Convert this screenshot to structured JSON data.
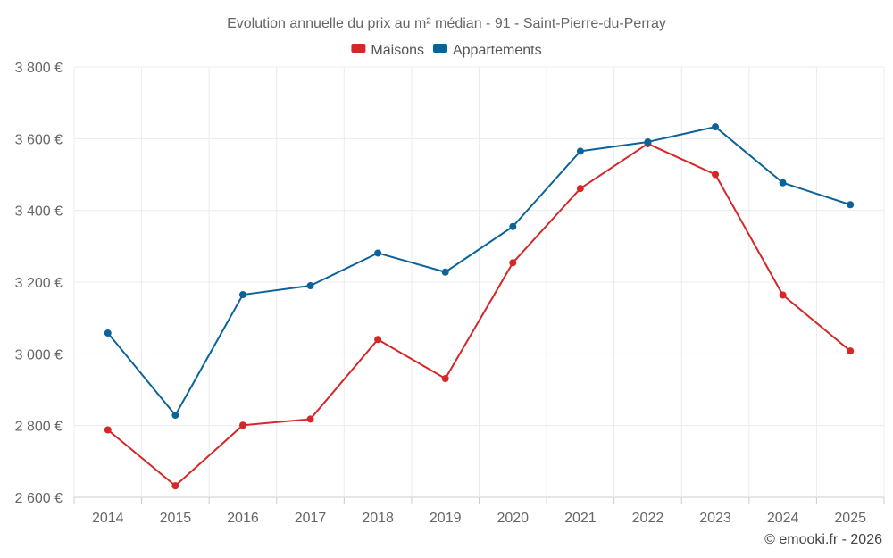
{
  "chart_data": {
    "type": "line",
    "title": "Evolution annuelle du prix au m² médian - 91 - Saint-Pierre-du-Perray",
    "categories": [
      "2014",
      "2015",
      "2016",
      "2017",
      "2018",
      "2019",
      "2020",
      "2021",
      "2022",
      "2023",
      "2024",
      "2025"
    ],
    "series": [
      {
        "name": "Maisons",
        "color": "#d62728",
        "values": [
          2788,
          2632,
          2801,
          2818,
          3040,
          2931,
          3254,
          3461,
          3586,
          3500,
          3164,
          3008
        ]
      },
      {
        "name": "Appartements",
        "color": "#0b6399",
        "values": [
          3058,
          2829,
          3165,
          3190,
          3281,
          3228,
          3355,
          3565,
          3591,
          3633,
          3477,
          3416
        ]
      }
    ],
    "ylim": [
      2600,
      3800
    ],
    "yticks": [
      2600,
      2800,
      3000,
      3200,
      3400,
      3600,
      3800
    ],
    "ytick_labels": [
      "2 600 €",
      "2 800 €",
      "3 000 €",
      "3 200 €",
      "3 400 €",
      "3 600 €",
      "3 800 €"
    ],
    "legend_position": "top-center",
    "grid": true,
    "xlabel": "",
    "ylabel": ""
  },
  "credit": "© emooki.fr - 2026"
}
